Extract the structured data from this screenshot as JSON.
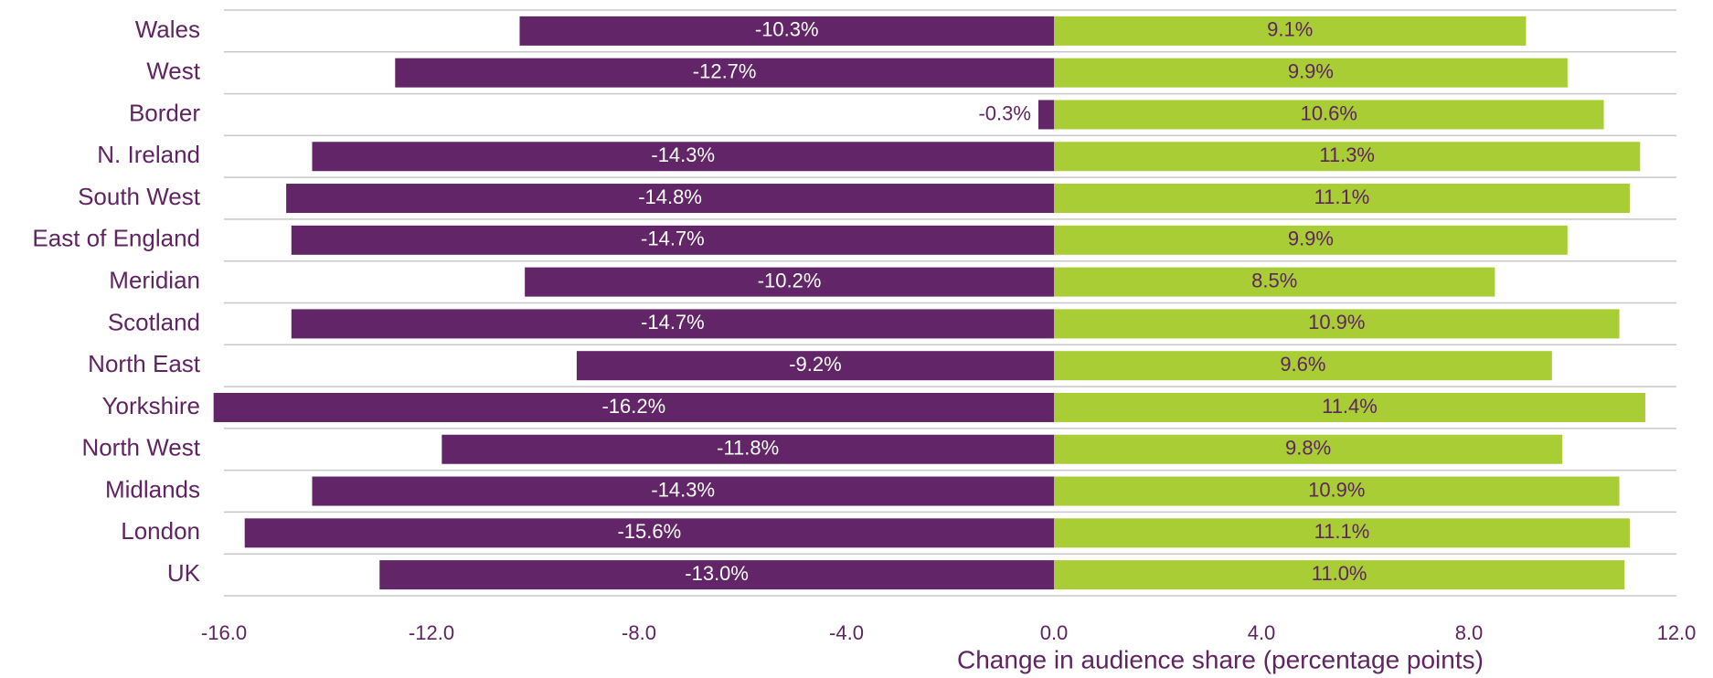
{
  "chart_data": {
    "type": "bar",
    "orientation": "horizontal",
    "categories": [
      "Wales",
      "West",
      "Border",
      "N. Ireland",
      "South West",
      "East of England",
      "Meridian",
      "Scotland",
      "North East",
      "Yorkshire",
      "North West",
      "Midlands",
      "London",
      "UK"
    ],
    "series": [
      {
        "color": "#622567",
        "values": [
          -10.3,
          -12.7,
          -0.3,
          -14.3,
          -14.8,
          -14.7,
          -10.2,
          -14.7,
          -9.2,
          -16.2,
          -11.8,
          -14.3,
          -15.6,
          -13.0
        ],
        "value_labels": [
          "-10.3%",
          "-12.7%",
          "-0.3%",
          "-14.3%",
          "-14.8%",
          "-14.7%",
          "-10.2%",
          "-14.7%",
          "-9.2%",
          "-16.2%",
          "-11.8%",
          "-14.3%",
          "-15.6%",
          "-13.0%"
        ]
      },
      {
        "color": "#a8cd35",
        "values": [
          9.1,
          9.9,
          10.6,
          11.3,
          11.1,
          9.9,
          8.5,
          10.9,
          9.6,
          11.4,
          9.8,
          10.9,
          11.1,
          11.0
        ],
        "value_labels": [
          "9.1%",
          "9.9%",
          "10.6%",
          "11.3%",
          "11.1%",
          "9.9%",
          "8.5%",
          "10.9%",
          "9.6%",
          "11.4%",
          "9.8%",
          "10.9%",
          "11.1%",
          "11.0%"
        ]
      }
    ],
    "xlabel": "Change in audience share (percentage points)",
    "xlim": [
      -16,
      12
    ],
    "xticks": [
      {
        "value": -16,
        "label": "-16.0"
      },
      {
        "value": -12,
        "label": "-12.0"
      },
      {
        "value": -8,
        "label": "-8.0"
      },
      {
        "value": -4,
        "label": "-4.0"
      },
      {
        "value": 0,
        "label": "0.0"
      },
      {
        "value": 4,
        "label": "4.0"
      },
      {
        "value": 8,
        "label": "8.0"
      },
      {
        "value": 12,
        "label": "12.0"
      }
    ]
  }
}
